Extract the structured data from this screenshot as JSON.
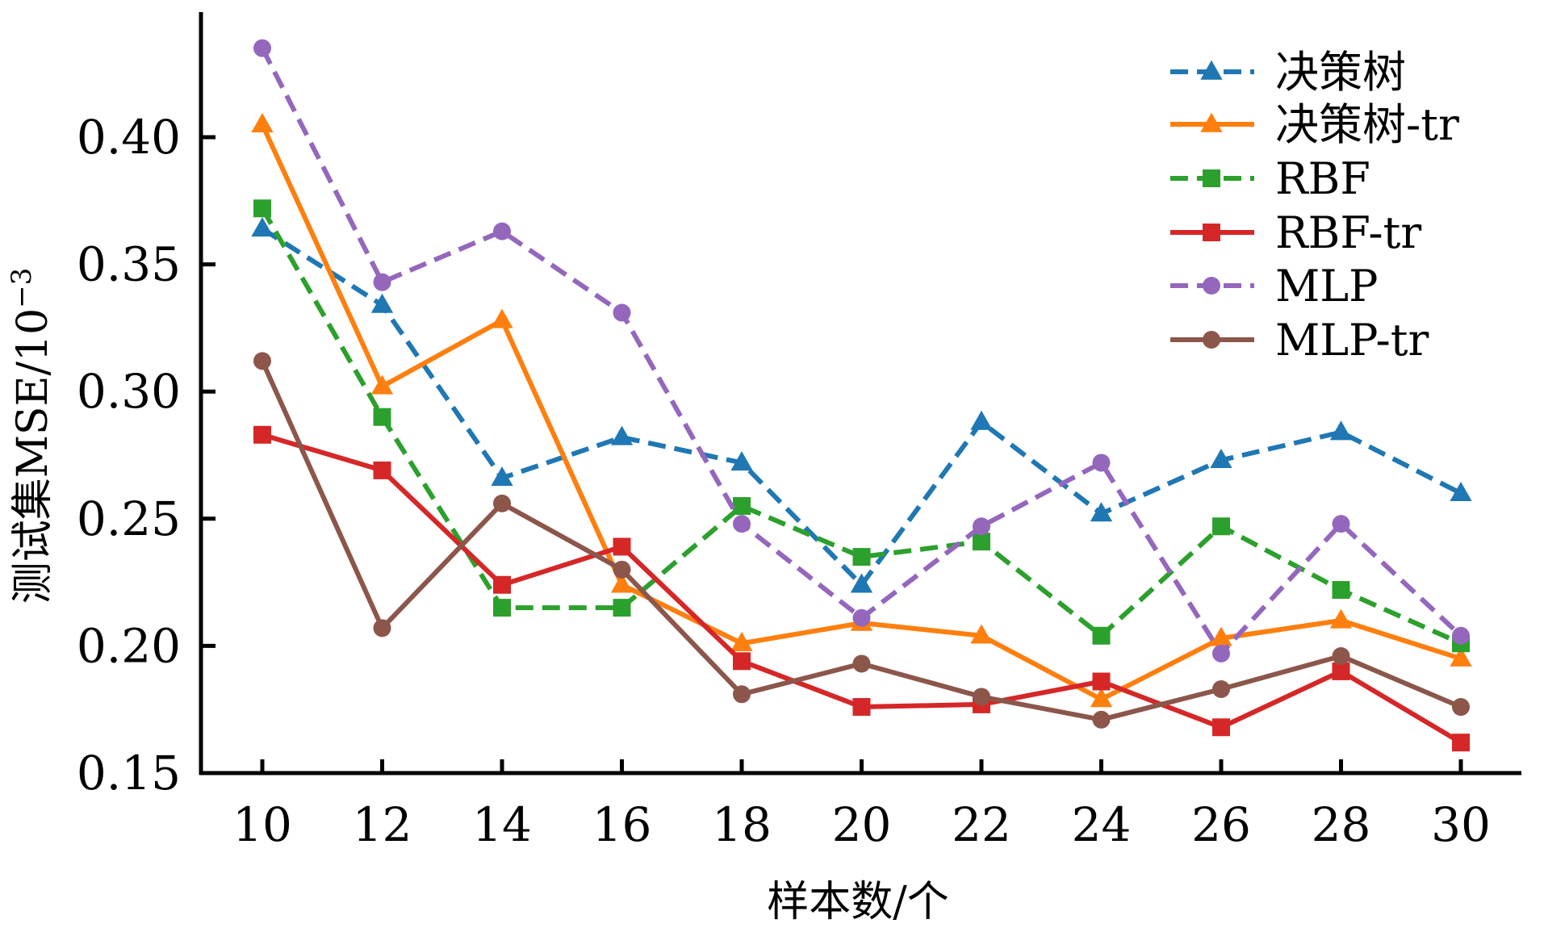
{
  "chart_data": {
    "type": "line",
    "title": "",
    "xlabel": "样本数/个",
    "ylabel_main": "测试集MSE/10",
    "ylabel_exponent": "−3",
    "x": [
      10,
      12,
      14,
      16,
      18,
      20,
      22,
      24,
      26,
      28,
      30
    ],
    "xticks": [
      "10",
      "12",
      "14",
      "16",
      "18",
      "20",
      "22",
      "24",
      "26",
      "28",
      "30"
    ],
    "yticks": [
      "0.15",
      "0.20",
      "0.25",
      "0.30",
      "0.35",
      "0.40"
    ],
    "ytick_values": [
      0.15,
      0.2,
      0.25,
      0.3,
      0.35,
      0.4
    ],
    "xlim": [
      10,
      30
    ],
    "ylim": [
      0.15,
      0.44
    ],
    "grid": false,
    "legend_position": "top-right",
    "series": [
      {
        "name": "决策树",
        "color": "#1f77b4",
        "line_style": "dashed",
        "marker": "triangle",
        "values": [
          0.364,
          0.334,
          0.266,
          0.282,
          0.272,
          0.224,
          0.288,
          0.252,
          0.273,
          0.284,
          0.26
        ]
      },
      {
        "name": "决策树-tr",
        "color": "#ff7f0e",
        "line_style": "solid",
        "marker": "triangle",
        "values": [
          0.405,
          0.302,
          0.328,
          0.224,
          0.201,
          0.209,
          0.204,
          0.179,
          0.203,
          0.21,
          0.195
        ]
      },
      {
        "name": "RBF",
        "color": "#2ca02c",
        "line_style": "dashed",
        "marker": "square",
        "values": [
          0.372,
          0.29,
          0.215,
          0.215,
          0.255,
          0.235,
          0.241,
          0.204,
          0.247,
          0.222,
          0.201
        ]
      },
      {
        "name": "RBF-tr",
        "color": "#d62728",
        "line_style": "solid",
        "marker": "square",
        "values": [
          0.283,
          0.269,
          0.224,
          0.239,
          0.194,
          0.176,
          0.177,
          0.186,
          0.168,
          0.19,
          0.162
        ]
      },
      {
        "name": "MLP",
        "color": "#9467bd",
        "line_style": "dashed",
        "marker": "circle",
        "values": [
          0.435,
          0.343,
          0.363,
          0.331,
          0.248,
          0.211,
          0.247,
          0.272,
          0.197,
          0.248,
          0.204
        ]
      },
      {
        "name": "MLP-tr",
        "color": "#8c564b",
        "line_style": "solid",
        "marker": "circle",
        "values": [
          0.312,
          0.207,
          0.256,
          0.23,
          0.181,
          0.193,
          0.18,
          0.171,
          0.183,
          0.196,
          0.176
        ]
      }
    ]
  }
}
